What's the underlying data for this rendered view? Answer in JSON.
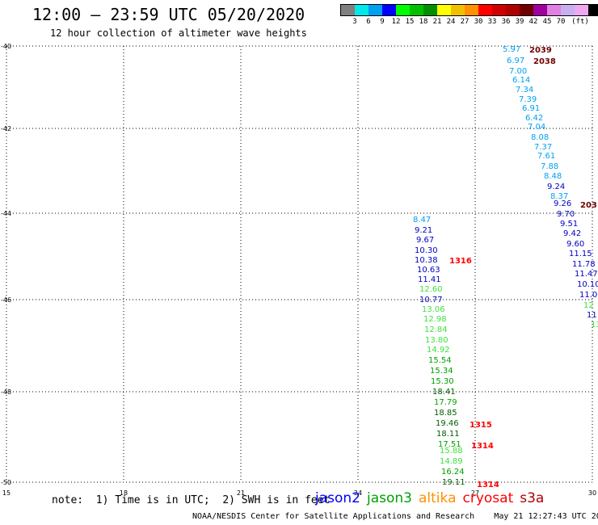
{
  "header": {
    "title": "12:00 – 23:59 UTC 05/20/2020",
    "subtitle": "12 hour collection of altimeter wave heights"
  },
  "legend": {
    "colors": [
      "#808080",
      "#00e8e8",
      "#00a0f0",
      "#0000ff",
      "#00ff00",
      "#00c000",
      "#009000",
      "#ffff00",
      "#f0c000",
      "#ff9000",
      "#ff0000",
      "#d00000",
      "#b00000",
      "#700000",
      "#a000a0",
      "#e080e0",
      "#c8b0f0",
      "#f0a8f0",
      "#000000"
    ],
    "labels": [
      "3",
      "6",
      "9",
      "12",
      "15",
      "18",
      "21",
      "24",
      "27",
      "30",
      "33",
      "36",
      "39",
      "42",
      "45",
      "70"
    ],
    "unit": "(ft)"
  },
  "axes": {
    "lon_ticks": [
      "15",
      "18",
      "21",
      "24",
      "27",
      "30"
    ],
    "lat_ticks": [
      "-40",
      "-42",
      "-44",
      "-46",
      "-48",
      "-50"
    ]
  },
  "observations": {
    "track_a": [
      {
        "v": "5.97",
        "c": "#00a0f0"
      },
      {
        "v": "6.97",
        "c": "#00a0f0"
      },
      {
        "v": "7.00",
        "c": "#00a0f0"
      },
      {
        "v": "6.14",
        "c": "#00a0f0"
      },
      {
        "v": "7.34",
        "c": "#00a0f0"
      },
      {
        "v": "7.39",
        "c": "#00a0f0"
      },
      {
        "v": "6.91",
        "c": "#00a0f0"
      },
      {
        "v": "6.42",
        "c": "#00a0f0"
      },
      {
        "v": "7.04",
        "c": "#00a0f0"
      },
      {
        "v": "8.08",
        "c": "#00a0f0"
      },
      {
        "v": "7.37",
        "c": "#00a0f0"
      },
      {
        "v": "7.61",
        "c": "#00a0f0"
      },
      {
        "v": "7.88",
        "c": "#00a0f0"
      },
      {
        "v": "8.48",
        "c": "#00a0f0"
      },
      {
        "v": "9.24",
        "c": "#0000c0"
      },
      {
        "v": "8.37",
        "c": "#00a0f0"
      },
      {
        "v": "9.26",
        "c": "#0000c0"
      },
      {
        "v": "9.70",
        "c": "#0000c0"
      },
      {
        "v": "9.51",
        "c": "#0000c0"
      },
      {
        "v": "9.42",
        "c": "#0000c0"
      },
      {
        "v": "9.60",
        "c": "#0000c0"
      },
      {
        "v": "11.15",
        "c": "#0000c0"
      },
      {
        "v": "11.78",
        "c": "#0000c0"
      },
      {
        "v": "11.47",
        "c": "#0000c0"
      },
      {
        "v": "10.10",
        "c": "#0000c0"
      },
      {
        "v": "11.0",
        "c": "#0000c0"
      },
      {
        "v": "12",
        "c": "#40e040"
      },
      {
        "v": "11",
        "c": "#0000c0"
      },
      {
        "v": "13",
        "c": "#40e040"
      }
    ],
    "track_b": [
      {
        "v": "8.47",
        "c": "#00a0f0"
      },
      {
        "v": "9.21",
        "c": "#0000c0"
      },
      {
        "v": "9.67",
        "c": "#0000c0"
      },
      {
        "v": "10.30",
        "c": "#0000c0"
      },
      {
        "v": "10.38",
        "c": "#0000c0"
      },
      {
        "v": "10.63",
        "c": "#0000c0"
      },
      {
        "v": "11.41",
        "c": "#0000c0"
      },
      {
        "v": "12.60",
        "c": "#40e040"
      },
      {
        "v": "10.77",
        "c": "#0000c0"
      },
      {
        "v": "13.06",
        "c": "#40e040"
      },
      {
        "v": "12.98",
        "c": "#40e040"
      },
      {
        "v": "12.84",
        "c": "#40e040"
      },
      {
        "v": "13.80",
        "c": "#40e040"
      },
      {
        "v": "14.92",
        "c": "#40e040"
      },
      {
        "v": "15.54",
        "c": "#00a000"
      },
      {
        "v": "15.34",
        "c": "#00a000"
      },
      {
        "v": "15.30",
        "c": "#00a000"
      },
      {
        "v": "18.41",
        "c": "#006000"
      },
      {
        "v": "17.79",
        "c": "#00a000"
      },
      {
        "v": "18.85",
        "c": "#006000"
      },
      {
        "v": "19.46",
        "c": "#006000"
      },
      {
        "v": "18.11",
        "c": "#006000"
      },
      {
        "v": "17.51",
        "c": "#00a000"
      },
      {
        "v": "15.88",
        "c": "#40e040"
      },
      {
        "v": "14.89",
        "c": "#40e040"
      },
      {
        "v": "16.24",
        "c": "#00a000"
      },
      {
        "v": "19.11",
        "c": "#006000"
      }
    ],
    "time_labels": [
      {
        "t": "2039",
        "c": "#700000"
      },
      {
        "t": "2038",
        "c": "#700000"
      },
      {
        "t": "203",
        "c": "#700000"
      },
      {
        "t": "1316",
        "c": "#ff0000"
      },
      {
        "t": "1315",
        "c": "#ff0000"
      },
      {
        "t": "1314",
        "c": "#ff0000"
      },
      {
        "t": "1314",
        "c": "#ff0000"
      }
    ]
  },
  "note": "note:  1) Time is in UTC;  2) SWH is in feet",
  "missions": [
    {
      "name": "jason2",
      "color": "#0000ff"
    },
    {
      "name": "jason3",
      "color": "#00a000"
    },
    {
      "name": "altika",
      "color": "#ff9000"
    },
    {
      "name": "cryosat",
      "color": "#ff0000"
    },
    {
      "name": "s3a",
      "color": "#b00000"
    }
  ],
  "footer": {
    "credit": "NOAA/NESDIS Center for Satellite Applications and Research",
    "timestamp": "May 21 12:27:43 UTC 2020"
  }
}
